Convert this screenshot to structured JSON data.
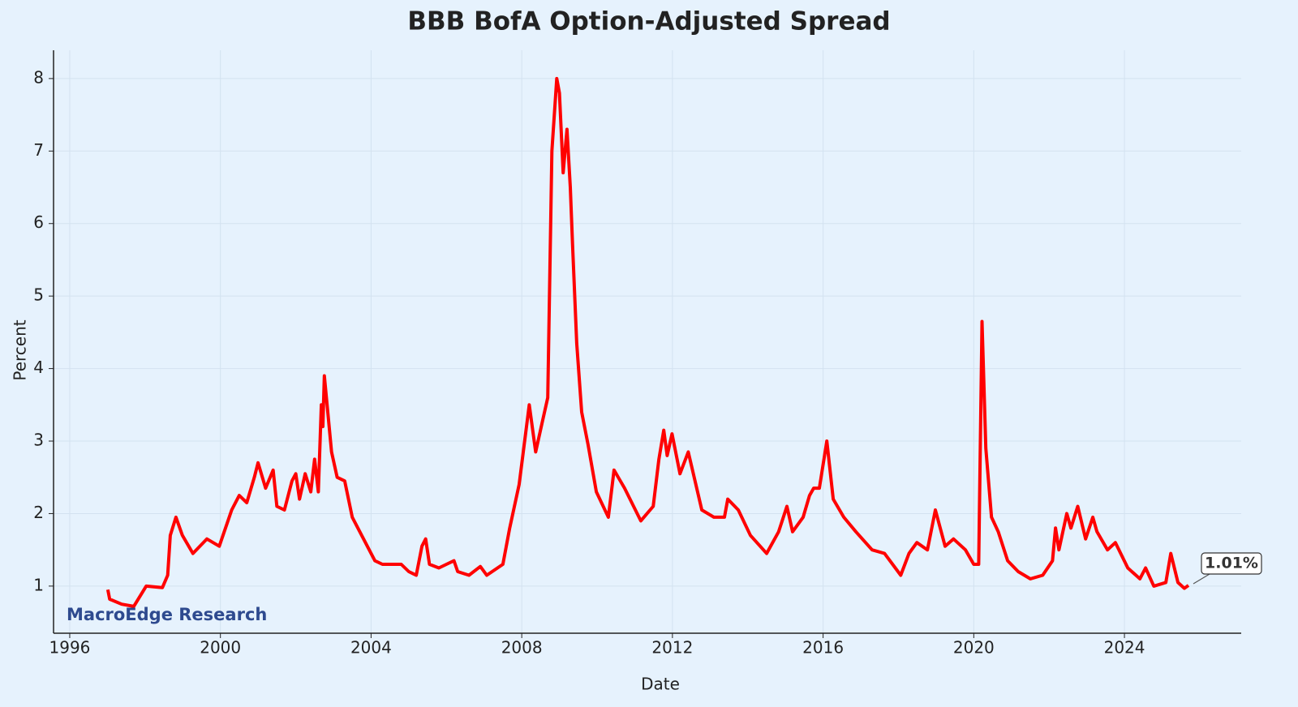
{
  "chart_data": {
    "type": "line",
    "title": "BBB BofA Option-Adjusted Spread",
    "x_label": "Date",
    "y_label": "Percent",
    "watermark": "MacroEdge Research",
    "annotation": "1.01%",
    "color": "#ff0000",
    "grid": true,
    "xlim": [
      1995.57,
      2027.1
    ],
    "xticks": [
      1996,
      2000,
      2004,
      2008,
      2012,
      2016,
      2020,
      2024
    ],
    "ylim": [
      0.35,
      8.39
    ],
    "yticks": [
      1,
      2,
      3,
      4,
      5,
      6,
      7,
      8
    ],
    "x": [
      1997.01,
      1997.06,
      1997.38,
      1997.7,
      1998.03,
      1998.46,
      1998.6,
      1998.67,
      1998.82,
      1998.99,
      1999.27,
      1999.64,
      1999.97,
      2000.3,
      2000.5,
      2000.7,
      2000.9,
      2001.0,
      2001.2,
      2001.4,
      2001.5,
      2001.7,
      2001.9,
      2002.0,
      2002.1,
      2002.25,
      2002.4,
      2002.5,
      2002.6,
      2002.68,
      2002.72,
      2002.76,
      2002.95,
      2003.1,
      2003.3,
      2003.5,
      2003.7,
      2003.9,
      2004.1,
      2004.3,
      2004.5,
      2004.8,
      2005.0,
      2005.2,
      2005.35,
      2005.45,
      2005.55,
      2005.8,
      2006.0,
      2006.2,
      2006.3,
      2006.6,
      2006.9,
      2007.07,
      2007.5,
      2007.68,
      2007.93,
      2008.2,
      2008.37,
      2008.54,
      2008.69,
      2008.8,
      2008.93,
      2009.0,
      2009.1,
      2009.2,
      2009.29,
      2009.35,
      2009.46,
      2009.59,
      2009.76,
      2009.98,
      2010.3,
      2010.45,
      2010.73,
      2011.16,
      2011.49,
      2011.64,
      2011.77,
      2011.86,
      2011.99,
      2012.2,
      2012.42,
      2012.78,
      2013.1,
      2013.38,
      2013.47,
      2013.75,
      2014.07,
      2014.5,
      2014.82,
      2015.04,
      2015.19,
      2015.47,
      2015.64,
      2015.75,
      2015.9,
      2016.1,
      2016.27,
      2016.55,
      2016.87,
      2017.3,
      2017.63,
      2018.06,
      2018.28,
      2018.49,
      2018.77,
      2018.98,
      2019.24,
      2019.46,
      2019.78,
      2020.0,
      2020.13,
      2020.22,
      2020.32,
      2020.47,
      2020.65,
      2020.9,
      2021.18,
      2021.5,
      2021.83,
      2022.09,
      2022.17,
      2022.26,
      2022.47,
      2022.58,
      2022.76,
      2022.97,
      2023.16,
      2023.27,
      2023.55,
      2023.76,
      2024.09,
      2024.41,
      2024.56,
      2024.78,
      2025.1,
      2025.23,
      2025.42,
      2025.59,
      2025.7
    ],
    "values": [
      0.95,
      0.82,
      0.75,
      0.72,
      1.0,
      0.98,
      1.15,
      1.7,
      1.95,
      1.7,
      1.45,
      1.65,
      1.55,
      2.05,
      2.25,
      2.15,
      2.5,
      2.7,
      2.35,
      2.6,
      2.1,
      2.05,
      2.45,
      2.55,
      2.2,
      2.55,
      2.3,
      2.75,
      2.3,
      3.5,
      3.2,
      3.9,
      2.85,
      2.5,
      2.45,
      1.95,
      1.75,
      1.55,
      1.35,
      1.3,
      1.3,
      1.3,
      1.2,
      1.15,
      1.55,
      1.65,
      1.3,
      1.25,
      1.3,
      1.35,
      1.2,
      1.15,
      1.27,
      1.15,
      1.3,
      1.8,
      2.4,
      3.5,
      2.85,
      3.25,
      3.6,
      7.0,
      8.0,
      7.8,
      6.7,
      7.3,
      6.5,
      5.7,
      4.35,
      3.4,
      2.95,
      2.3,
      1.95,
      2.6,
      2.35,
      1.9,
      2.1,
      2.75,
      3.15,
      2.8,
      3.1,
      2.55,
      2.85,
      2.05,
      1.95,
      1.95,
      2.2,
      2.05,
      1.7,
      1.45,
      1.75,
      2.1,
      1.75,
      1.95,
      2.25,
      2.35,
      2.35,
      3.0,
      2.2,
      1.95,
      1.75,
      1.5,
      1.45,
      1.15,
      1.45,
      1.6,
      1.5,
      2.05,
      1.55,
      1.65,
      1.5,
      1.3,
      1.3,
      4.65,
      2.9,
      1.95,
      1.75,
      1.35,
      1.2,
      1.1,
      1.15,
      1.35,
      1.8,
      1.5,
      2.0,
      1.8,
      2.1,
      1.65,
      1.95,
      1.75,
      1.5,
      1.6,
      1.25,
      1.1,
      1.25,
      1.0,
      1.05,
      1.45,
      1.05,
      0.97,
      1.01
    ]
  }
}
